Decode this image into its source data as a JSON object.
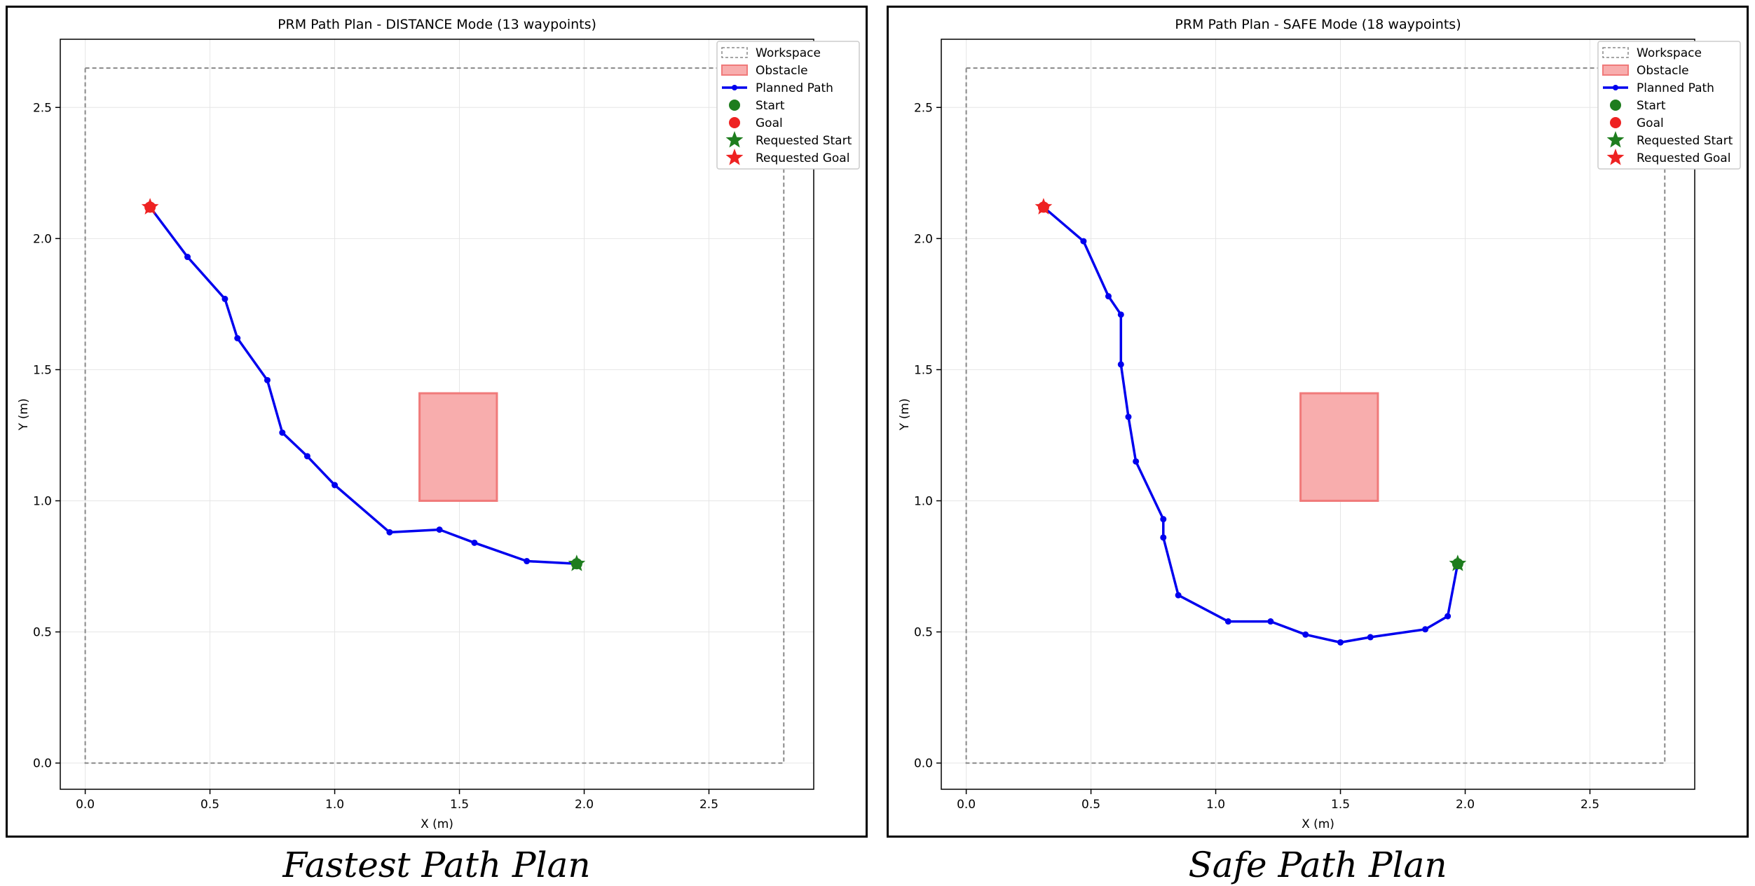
{
  "colors": {
    "path": "#0000ee",
    "start": "#1e7d1e",
    "goal": "#ee2222",
    "obstacle_fill": "#f8adad",
    "obstacle_edge": "#f07a7a",
    "grid": "#e6e6e6",
    "workspace": "#888888"
  },
  "chart_data": [
    {
      "type": "line",
      "title": "PRM Path Plan - DISTANCE Mode (13 waypoints)",
      "xlabel": "X (m)",
      "ylabel": "Y (m)",
      "xlim": [
        -0.1,
        2.92
      ],
      "ylim": [
        -0.1,
        2.76
      ],
      "xticks": [
        "0.0",
        "0.5",
        "1.0",
        "1.5",
        "2.0",
        "2.5"
      ],
      "yticks": [
        "0.0",
        "0.5",
        "1.0",
        "1.5",
        "2.0",
        "2.5"
      ],
      "grid": true,
      "legend_position": "top-right",
      "workspace": {
        "x": [
          0.0,
          2.8
        ],
        "y": [
          0.0,
          2.65
        ]
      },
      "obstacle": {
        "x": [
          1.34,
          1.65
        ],
        "y": [
          1.0,
          1.41
        ]
      },
      "series": [
        {
          "name": "Planned Path",
          "x": [
            0.26,
            0.41,
            0.56,
            0.61,
            0.73,
            0.79,
            0.89,
            1.0,
            1.22,
            1.42,
            1.56,
            1.77,
            1.97
          ],
          "y": [
            2.12,
            1.93,
            1.77,
            1.62,
            1.46,
            1.26,
            1.17,
            1.06,
            0.88,
            0.89,
            0.84,
            0.77,
            0.76
          ]
        }
      ],
      "start": [
        1.97,
        0.76
      ],
      "goal": [
        0.26,
        2.12
      ],
      "requested_start": [
        1.97,
        0.76
      ],
      "requested_goal": [
        0.26,
        2.12
      ],
      "legend": [
        "Workspace",
        "Obstacle",
        "Planned Path",
        "Start",
        "Goal",
        "Requested Start",
        "Requested Goal"
      ]
    },
    {
      "type": "line",
      "title": "PRM Path Plan - SAFE Mode (18 waypoints)",
      "xlabel": "X (m)",
      "ylabel": "Y (m)",
      "xlim": [
        -0.1,
        2.92
      ],
      "ylim": [
        -0.1,
        2.76
      ],
      "xticks": [
        "0.0",
        "0.5",
        "1.0",
        "1.5",
        "2.0",
        "2.5"
      ],
      "yticks": [
        "0.0",
        "0.5",
        "1.0",
        "1.5",
        "2.0",
        "2.5"
      ],
      "grid": true,
      "legend_position": "top-right",
      "workspace": {
        "x": [
          0.0,
          2.8
        ],
        "y": [
          0.0,
          2.65
        ]
      },
      "obstacle": {
        "x": [
          1.34,
          1.65
        ],
        "y": [
          1.0,
          1.41
        ]
      },
      "series": [
        {
          "name": "Planned Path",
          "x": [
            0.31,
            0.47,
            0.57,
            0.62,
            0.62,
            0.65,
            0.68,
            0.79,
            0.79,
            0.85,
            1.05,
            1.22,
            1.36,
            1.5,
            1.62,
            1.84,
            1.93,
            1.97
          ],
          "y": [
            2.12,
            1.99,
            1.78,
            1.71,
            1.52,
            1.32,
            1.15,
            0.93,
            0.86,
            0.64,
            0.54,
            0.54,
            0.49,
            0.46,
            0.48,
            0.51,
            0.56,
            0.76
          ]
        }
      ],
      "start": [
        1.97,
        0.76
      ],
      "goal": [
        0.31,
        2.12
      ],
      "requested_start": [
        1.97,
        0.76
      ],
      "requested_goal": [
        0.31,
        2.12
      ],
      "legend": [
        "Workspace",
        "Obstacle",
        "Planned Path",
        "Start",
        "Goal",
        "Requested Start",
        "Requested Goal"
      ]
    }
  ],
  "captions": {
    "left": "Fastest Path Plan",
    "right": "Safe Path Plan"
  }
}
